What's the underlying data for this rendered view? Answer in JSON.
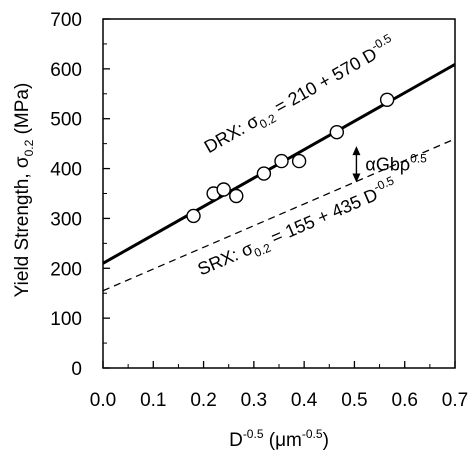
{
  "chart_data": {
    "type": "scatter",
    "title": "",
    "xlabel": {
      "base": "D",
      "base_sup": "-0.5",
      "unit_open": " (",
      "unit_mu": "μm",
      "unit_sup": "-0.5",
      "unit_close": ")"
    },
    "ylabel": {
      "prefix": "Yield Strength, ",
      "sigma": "σ",
      "sub": "0.2",
      "suffix": " (MPa)"
    },
    "xlim": [
      0.0,
      0.7
    ],
    "ylim": [
      0,
      700
    ],
    "x_ticks": [
      "0.0",
      "0.1",
      "0.2",
      "0.3",
      "0.4",
      "0.5",
      "0.6",
      "0.7"
    ],
    "y_ticks": [
      "0",
      "100",
      "200",
      "300",
      "400",
      "500",
      "600",
      "700"
    ],
    "grid": false,
    "points": [
      {
        "x": 0.18,
        "y": 305
      },
      {
        "x": 0.22,
        "y": 350
      },
      {
        "x": 0.24,
        "y": 358
      },
      {
        "x": 0.265,
        "y": 345
      },
      {
        "x": 0.32,
        "y": 390
      },
      {
        "x": 0.355,
        "y": 415
      },
      {
        "x": 0.39,
        "y": 415
      },
      {
        "x": 0.465,
        "y": 473
      },
      {
        "x": 0.565,
        "y": 538
      }
    ],
    "lines": [
      {
        "label_prefix": "DRX: ",
        "sigma": "σ",
        "sub": "0.2",
        "eq": " = 210 + 570 D",
        "sup": "-0.5",
        "intercept": 210,
        "slope": 570,
        "style": "solid"
      },
      {
        "label_prefix": "SRX: ",
        "sigma": "σ",
        "sub": "0.2",
        "eq": " = 155 + 435 D",
        "sup": "-0.5",
        "intercept": 155,
        "slope": 435,
        "style": "dashed"
      }
    ],
    "annotation": {
      "text": "αGbρ",
      "sup": "0.5",
      "x": 0.5,
      "y_top": 445,
      "y_bottom": 372
    }
  }
}
